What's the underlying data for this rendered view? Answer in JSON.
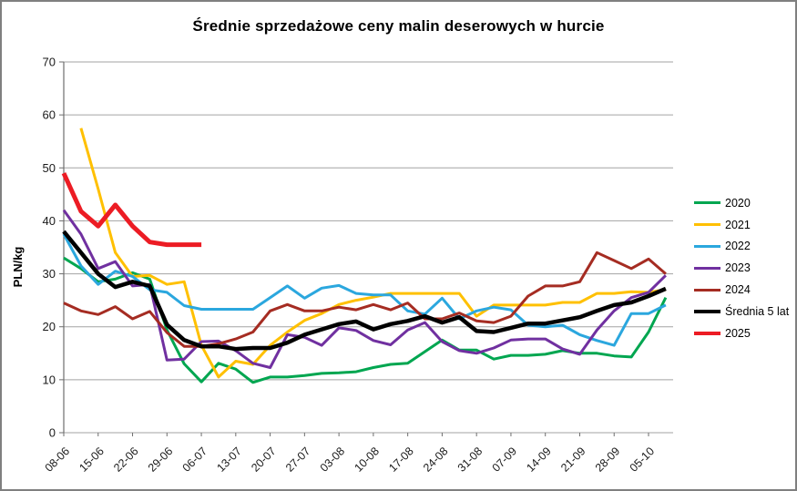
{
  "title": "Średnie sprzedażowe ceny malin deserowych w hurcie",
  "y_axis": {
    "label": "PLN/kg",
    "ticks": [
      0,
      10,
      20,
      30,
      40,
      50,
      60,
      70
    ]
  },
  "x_axis": {
    "labels": [
      "08-06",
      "15-06",
      "22-06",
      "29-06",
      "06-07",
      "13-07",
      "20-07",
      "27-07",
      "03-08",
      "10-08",
      "17-08",
      "24-08",
      "31-08",
      "07-09",
      "14-09",
      "21-09",
      "28-09",
      "05-10"
    ]
  },
  "chart_data": {
    "type": "line",
    "title": "Średnie sprzedażowe ceny malin deserowych w hurcie",
    "xlabel": "",
    "ylabel": "PLN/kg",
    "ylim": [
      0,
      70
    ],
    "grid": "horizontal",
    "legend_position": "right",
    "x_tick_labels": [
      "08-06",
      "15-06",
      "22-06",
      "29-06",
      "06-07",
      "13-07",
      "20-07",
      "27-07",
      "03-08",
      "10-08",
      "17-08",
      "24-08",
      "31-08",
      "07-09",
      "14-09",
      "21-09",
      "28-09",
      "05-10"
    ],
    "points_per_week": 2,
    "series": [
      {
        "name": "2020",
        "color": "#00A650",
        "width": 3,
        "values": [
          33,
          31,
          28.5,
          29,
          30.2,
          29,
          19.4,
          13,
          9.6,
          13.1,
          12,
          9.5,
          10.5,
          10.5,
          10.8,
          11.2,
          11.3,
          11.5,
          12.3,
          12.9,
          13.1,
          15.3,
          17.5,
          15.6,
          15.6,
          13.9,
          14.6,
          14.6,
          14.8,
          15.5,
          15,
          15,
          14.5,
          14.3,
          19,
          25.5
        ]
      },
      {
        "name": "2021",
        "color": "#FFC000",
        "width": 3,
        "values": [
          null,
          57.5,
          46,
          34,
          29.5,
          29.7,
          28,
          28.5,
          16.5,
          10.5,
          13.5,
          12.9,
          16.5,
          19,
          21.2,
          22.5,
          24.2,
          25,
          25.6,
          26.3,
          26.3,
          26.3,
          26.3,
          26.3,
          22,
          24.1,
          24.1,
          24.1,
          24.1,
          24.6,
          24.6,
          26.3,
          26.3,
          26.6,
          26.5,
          27
        ]
      },
      {
        "name": "2022",
        "color": "#2BA7DE",
        "width": 3,
        "values": [
          37.5,
          31.5,
          28,
          30.5,
          29.5,
          27,
          26.5,
          24,
          23.3,
          23.3,
          23.3,
          23.3,
          25.5,
          27.7,
          25.4,
          27.3,
          27.8,
          26.3,
          26,
          26,
          23,
          22.4,
          25.4,
          21.5,
          23,
          23.7,
          23.2,
          20.3,
          20,
          20.3,
          18.5,
          17.4,
          16.5,
          22.5,
          22.5,
          24.1
        ]
      },
      {
        "name": "2023",
        "color": "#7030A0",
        "width": 3,
        "values": [
          42,
          37.5,
          31,
          32.3,
          27.7,
          28,
          13.7,
          13.9,
          17.2,
          17.3,
          15.5,
          13.1,
          12.3,
          18.5,
          18,
          16.5,
          19.8,
          19.3,
          17.4,
          16.6,
          19.4,
          20.8,
          17.2,
          15.5,
          15,
          16,
          17.5,
          17.7,
          17.7,
          15.8,
          14.8,
          19.4,
          23,
          25.5,
          26.5,
          29.7
        ]
      },
      {
        "name": "2024",
        "color": "#A52C22",
        "width": 3,
        "values": [
          24.5,
          23,
          22.3,
          23.8,
          21.5,
          22.9,
          18.9,
          16.3,
          16.3,
          16.8,
          17.7,
          19,
          23,
          24.2,
          23,
          23,
          23.7,
          23.2,
          24.2,
          23.2,
          24.5,
          21.5,
          21.5,
          22.6,
          21.1,
          20.8,
          22,
          25.8,
          27.7,
          27.7,
          28.5,
          34,
          32.5,
          31,
          32.8,
          30
        ]
      },
      {
        "name": "Średnia 5 lat",
        "color": "#000000",
        "width": 4.5,
        "values": [
          38,
          34,
          30,
          27.5,
          28.5,
          27.7,
          20.4,
          17.5,
          16.3,
          16.3,
          15.8,
          16,
          16,
          17,
          18.5,
          19.5,
          20.5,
          21,
          19.5,
          20.5,
          21.1,
          22,
          20.8,
          21.8,
          19.2,
          19,
          19.8,
          20.6,
          20.6,
          21.2,
          21.8,
          23,
          24.1,
          24.6,
          25.8,
          27.2
        ]
      },
      {
        "name": "2025",
        "color": "#EC1C24",
        "width": 5,
        "values": [
          49,
          41.8,
          39,
          43,
          39,
          36,
          35.5,
          35.5,
          35.5,
          null,
          null,
          null,
          null,
          null,
          null,
          null,
          null,
          null,
          null,
          null,
          null,
          null,
          null,
          null,
          null,
          null,
          null,
          null,
          null,
          null,
          null,
          null,
          null,
          null,
          null,
          null
        ]
      }
    ]
  }
}
